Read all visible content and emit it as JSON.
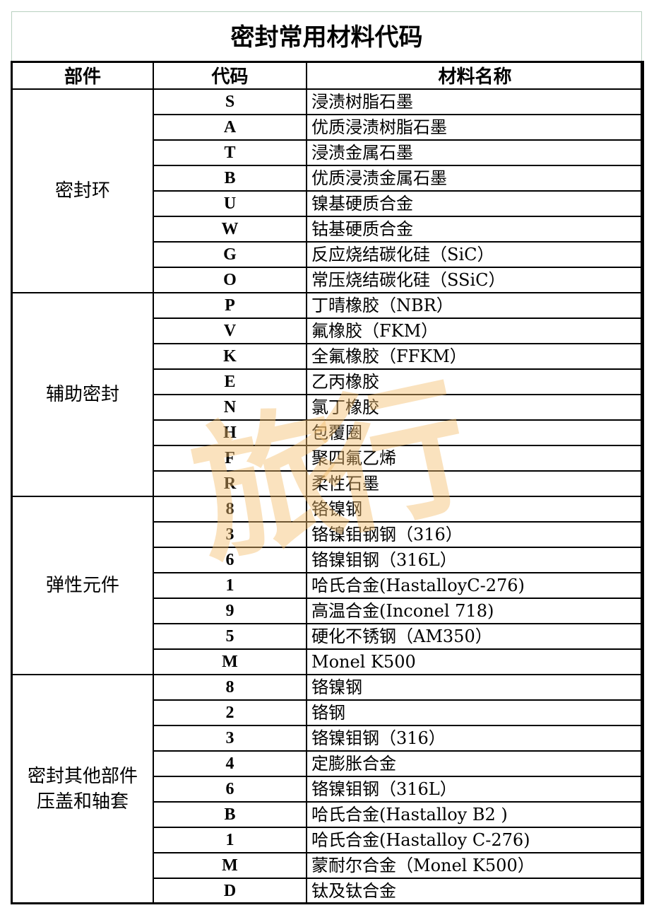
{
  "title": "密封常用材料代码",
  "headers": {
    "part": "部件",
    "code": "代码",
    "material": "材料名称"
  },
  "watermark": "旅行",
  "groups": [
    {
      "part": "密封环",
      "rows": [
        {
          "code": "S",
          "material": "浸渍树脂石墨"
        },
        {
          "code": "A",
          "material": "优质浸渍树脂石墨"
        },
        {
          "code": "T",
          "material": "浸渍金属石墨"
        },
        {
          "code": "B",
          "material": "优质浸渍金属石墨"
        },
        {
          "code": "U",
          "material": "镍基硬质合金"
        },
        {
          "code": "W",
          "material": "钴基硬质合金"
        },
        {
          "code": "G",
          "material": "反应烧结碳化硅（SiC）"
        },
        {
          "code": "O",
          "material": "常压烧结碳化硅（SSiC）"
        }
      ]
    },
    {
      "part": "辅助密封",
      "rows": [
        {
          "code": "P",
          "material": "丁晴橡胶（NBR）"
        },
        {
          "code": "V",
          "material": "氟橡胶（FKM）"
        },
        {
          "code": "K",
          "material": "全氟橡胶（FFKM）"
        },
        {
          "code": "E",
          "material": "乙丙橡胶"
        },
        {
          "code": "N",
          "material": "氯丁橡胶"
        },
        {
          "code": "H",
          "material": "包覆圈"
        },
        {
          "code": "F",
          "material": "聚四氟乙烯"
        },
        {
          "code": "R",
          "material": "柔性石墨"
        }
      ]
    },
    {
      "part": "弹性元件",
      "rows": [
        {
          "code": "8",
          "material": "铬镍钢"
        },
        {
          "code": "3",
          "material": "铬镍钼钢钢（316）"
        },
        {
          "code": "6",
          "material": "铬镍钼钢（316L）"
        },
        {
          "code": "1",
          "material": "哈氏合金(HastalloyC-276)"
        },
        {
          "code": "9",
          "material": "高温合金(Inconel 718)"
        },
        {
          "code": "5",
          "material": "硬化不锈钢（AM350）"
        },
        {
          "code": "M",
          "material": "Monel K500"
        }
      ]
    },
    {
      "part": "密封其他部件\n压盖和轴套",
      "part_lines": [
        "密封其他部件",
        "压盖和轴套"
      ],
      "rows": [
        {
          "code": "8",
          "material": "铬镍钢"
        },
        {
          "code": "2",
          "material": "铬钢"
        },
        {
          "code": "3",
          "material": "铬镍钼钢（316）"
        },
        {
          "code": "4",
          "material": "定膨胀合金"
        },
        {
          "code": "6",
          "material": "铬镍钼钢（316L）"
        },
        {
          "code": "B",
          "material": "哈氏合金(Hastalloy B2 )"
        },
        {
          "code": "1",
          "material": "哈氏合金(Hastalloy C-276)"
        },
        {
          "code": "M",
          "material": "蒙耐尔合金（Monel K500）"
        },
        {
          "code": "D",
          "material": "钛及钛合金"
        }
      ]
    }
  ]
}
